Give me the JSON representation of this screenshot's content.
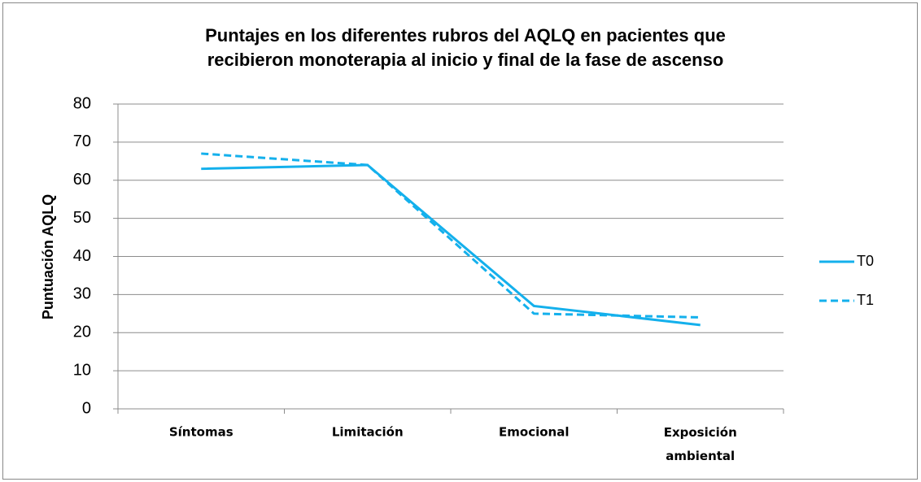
{
  "chart_data": {
    "type": "line",
    "title": "Puntajes en los diferentes rubros del AQLQ en pacientes que recibieron monoterapia al inicio y final de la fase de ascenso",
    "ylabel": "Puntuación AQLQ",
    "categories": [
      "Síntomas",
      "Limitación",
      "Emocional",
      "Exposición ambiental"
    ],
    "series": [
      {
        "name": "T0",
        "color": "#14b0ec",
        "style": "solid",
        "values": [
          63,
          64,
          27,
          22
        ]
      },
      {
        "name": "T1",
        "color": "#14b0ec",
        "style": "dashed",
        "values": [
          67,
          64,
          25,
          24
        ]
      }
    ],
    "ylim": [
      0,
      80
    ],
    "yticks": [
      0,
      10,
      20,
      30,
      40,
      50,
      60,
      70,
      80
    ],
    "grid": true,
    "legend": "right"
  }
}
